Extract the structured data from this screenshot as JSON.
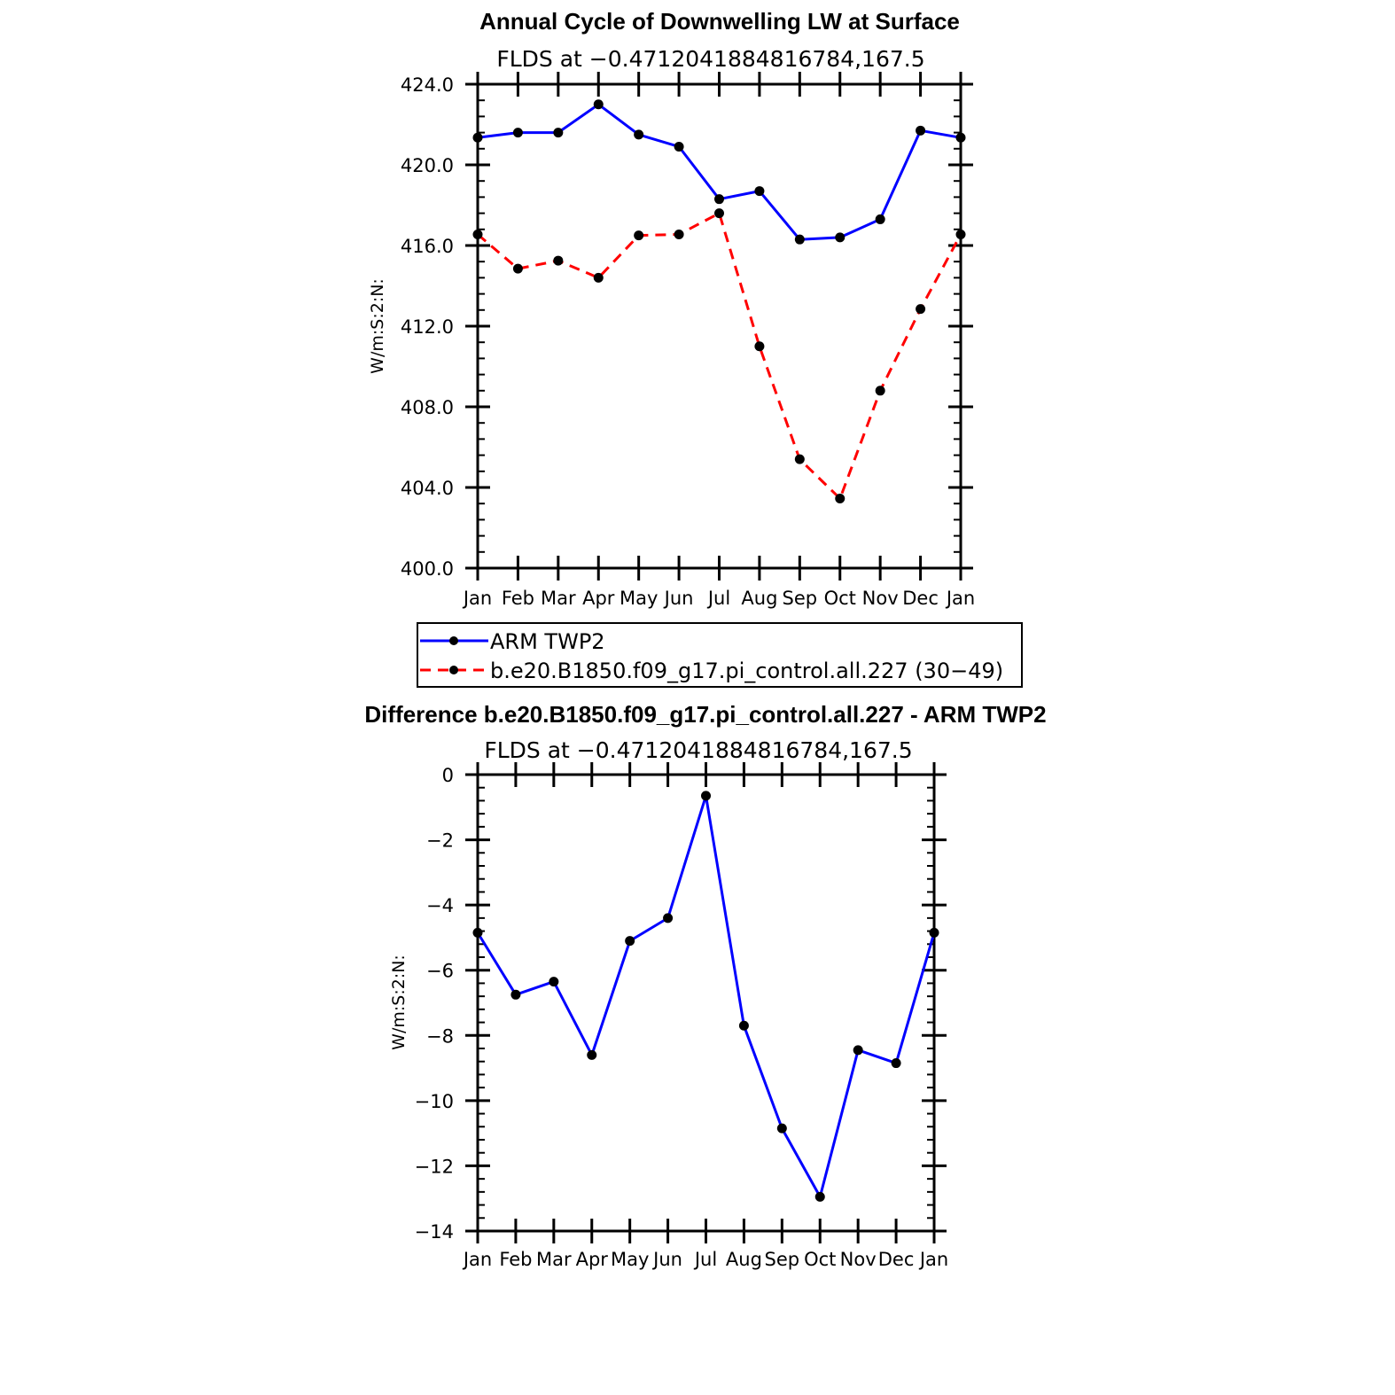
{
  "chart_data": [
    {
      "type": "line",
      "title": "Annual Cycle of Downwelling LW at Surface",
      "subtitle": "FLDS at −0.4712041884816784,167.5",
      "ylabel": "W/m:S:2:N:",
      "xlabel": "",
      "categories": [
        "Jan",
        "Feb",
        "Mar",
        "Apr",
        "May",
        "Jun",
        "Jul",
        "Aug",
        "Sep",
        "Oct",
        "Nov",
        "Dec",
        "Jan"
      ],
      "ylim": [
        400,
        424
      ],
      "yticks": [
        "400.0",
        "404.0",
        "408.0",
        "412.0",
        "416.0",
        "420.0",
        "424.0"
      ],
      "series": [
        {
          "name": "ARM TWP2",
          "color": "#0000ff",
          "dash": "solid",
          "values": [
            421.35,
            421.6,
            421.6,
            423.0,
            421.5,
            420.9,
            418.3,
            418.7,
            416.3,
            416.4,
            417.3,
            421.7,
            421.35
          ]
        },
        {
          "name": "b.e20.B1850.f09_g17.pi_control.all.227 (30−49)",
          "color": "#ff0000",
          "dash": "dashed",
          "values": [
            416.55,
            414.85,
            415.25,
            414.4,
            416.5,
            416.55,
            417.6,
            411.0,
            405.4,
            403.45,
            408.8,
            412.85,
            416.55
          ]
        }
      ],
      "legend": "below",
      "marker_color": "#000000"
    },
    {
      "type": "line",
      "title": "Difference b.e20.B1850.f09_g17.pi_control.all.227 - ARM TWP2",
      "subtitle": "FLDS at −0.4712041884816784,167.5",
      "ylabel": "W/m:S:2:N:",
      "xlabel": "",
      "categories": [
        "Jan",
        "Feb",
        "Mar",
        "Apr",
        "May",
        "Jun",
        "Jul",
        "Aug",
        "Sep",
        "Oct",
        "Nov",
        "Dec",
        "Jan"
      ],
      "ylim": [
        -14,
        0
      ],
      "yticks": [
        "−14",
        "−12",
        "−10",
        "−8",
        "−6",
        "−4",
        "−2",
        "0"
      ],
      "series": [
        {
          "color": "#0000ff",
          "dash": "solid",
          "values": [
            -4.85,
            -6.75,
            -6.35,
            -8.6,
            -5.1,
            -4.4,
            -0.65,
            -7.7,
            -10.85,
            -12.95,
            -8.45,
            -8.85,
            -4.85
          ]
        }
      ],
      "marker_color": "#000000"
    }
  ]
}
